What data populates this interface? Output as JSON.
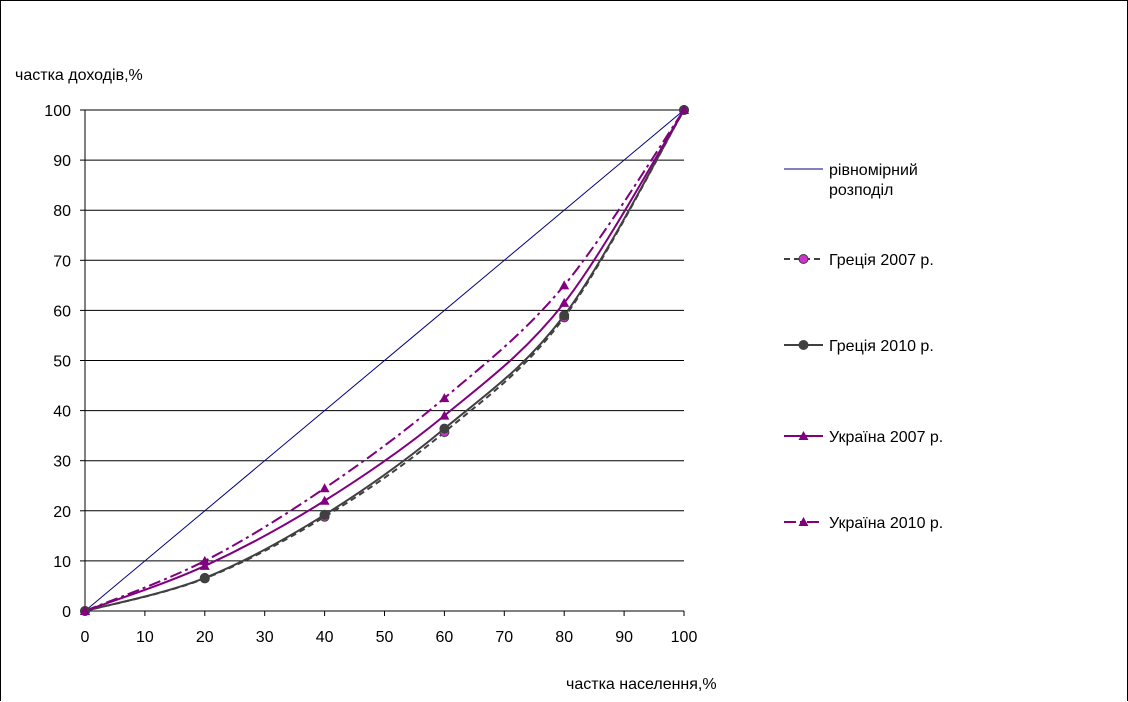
{
  "chart_data": {
    "type": "line",
    "ylabel": "частка доходів,%",
    "xlabel": "частка населення,%",
    "xlim": [
      0,
      100
    ],
    "ylim": [
      0,
      100
    ],
    "x_ticks": [
      0,
      10,
      20,
      30,
      40,
      50,
      60,
      70,
      80,
      90,
      100
    ],
    "y_ticks": [
      0,
      10,
      20,
      30,
      40,
      50,
      60,
      70,
      80,
      90,
      100
    ],
    "grid": "horizontal",
    "legend_position": "right",
    "series": [
      {
        "name": "рівномірний розподіл",
        "name_lines": [
          "рівномірний",
          "розподіл"
        ],
        "color": "#000080",
        "style": "solid",
        "marker": "none",
        "x": [
          0,
          100
        ],
        "y": [
          0,
          100
        ]
      },
      {
        "name": "Греція 2007 р.",
        "color": "#404040",
        "marker_color": "#cc33cc",
        "style": "dashed",
        "marker": "circle",
        "x": [
          0,
          20,
          40,
          60,
          80,
          100
        ],
        "y": [
          0,
          6.5,
          18.8,
          35.7,
          58.6,
          100
        ]
      },
      {
        "name": "Греція 2010 р.",
        "color": "#404040",
        "marker_color": "#404040",
        "style": "solid",
        "marker": "circle",
        "x": [
          0,
          20,
          40,
          60,
          80,
          100
        ],
        "y": [
          0,
          6.6,
          19.2,
          36.4,
          59.0,
          100
        ]
      },
      {
        "name": "Україна 2007 р.",
        "color": "#800080",
        "marker_color": "#800080",
        "style": "solid",
        "marker": "triangle",
        "x": [
          0,
          20,
          40,
          60,
          80,
          100
        ],
        "y": [
          0,
          9.0,
          22.0,
          39.0,
          61.5,
          100
        ]
      },
      {
        "name": "Україна 2010 р.",
        "color": "#800080",
        "marker_color": "#800080",
        "style": "dashdot",
        "marker": "triangle",
        "x": [
          0,
          20,
          40,
          60,
          80,
          100
        ],
        "y": [
          0,
          10.0,
          24.5,
          42.5,
          65.0,
          100
        ]
      }
    ]
  }
}
